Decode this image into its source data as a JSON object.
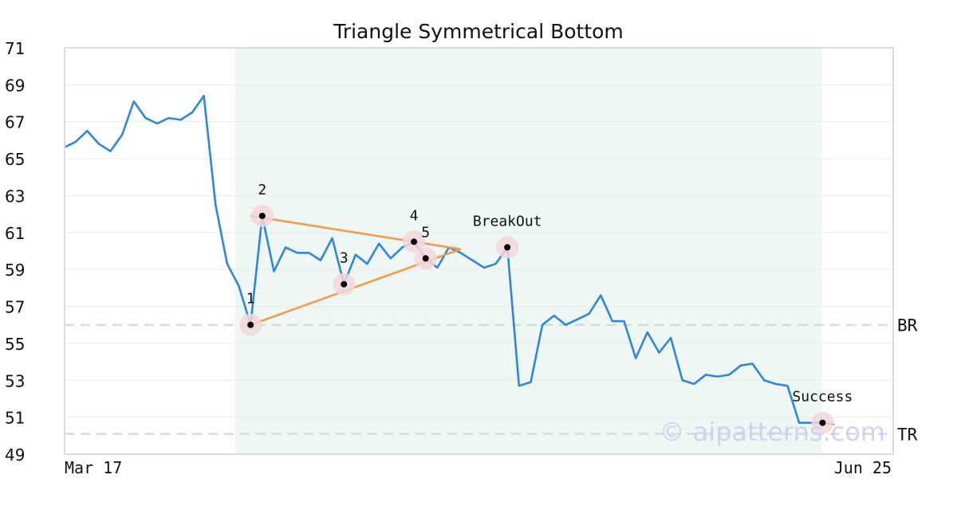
{
  "chart_data": {
    "type": "line",
    "title": "Triangle Symmetrical Bottom",
    "xlabel": "",
    "ylabel": "",
    "x_tick_labels": [
      "Mar 17",
      "Jun 25"
    ],
    "ylim": [
      49,
      71
    ],
    "y_ticks": [
      49,
      51,
      53,
      55,
      57,
      59,
      61,
      63,
      65,
      67,
      69,
      71
    ],
    "grid": "horizontal",
    "series": [
      {
        "values": [
          65.6,
          65.9,
          66.5,
          65.8,
          65.4,
          66.3,
          68.1,
          67.2,
          66.9,
          67.2,
          67.1,
          67.5,
          68.4,
          62.5,
          59.3,
          58.1,
          56.0,
          61.9,
          58.9,
          60.2,
          59.9,
          59.9,
          59.5,
          60.7,
          58.2,
          59.8,
          59.3,
          60.4,
          59.6,
          60.2,
          60.5,
          59.6,
          59.1,
          60.2,
          59.9,
          59.5,
          59.1,
          59.3,
          60.2,
          52.7,
          52.9,
          56.0,
          56.5,
          56.0,
          56.3,
          56.6,
          57.6,
          56.2,
          56.2,
          54.2,
          55.6,
          54.5,
          55.3,
          53.0,
          52.8,
          53.3,
          53.2,
          53.3,
          53.8,
          53.9,
          53.0,
          52.8,
          52.7,
          50.7,
          50.7,
          50.7,
          50.6
        ]
      }
    ],
    "highlight_range": {
      "start_index": 14,
      "end_index": 65
    },
    "pattern_lines": [
      {
        "from": {
          "x_index": 16,
          "y": 61.9
        },
        "to": {
          "x_index": 34,
          "y": 60.1
        }
      },
      {
        "from": {
          "x_index": 16,
          "y": 56.0
        },
        "to": {
          "x_index": 34,
          "y": 60.1
        }
      }
    ],
    "pattern_points": [
      {
        "label": "1",
        "x_index": 16,
        "y": 56.0
      },
      {
        "label": "2",
        "x_index": 17,
        "y": 61.9
      },
      {
        "label": "3",
        "x_index": 24,
        "y": 58.2
      },
      {
        "label": "4",
        "x_index": 30,
        "y": 60.5
      },
      {
        "label": "5",
        "x_index": 31,
        "y": 59.6
      },
      {
        "label": "BreakOut",
        "x_index": 38,
        "y": 60.2
      },
      {
        "label": "Success",
        "x_index": 65,
        "y": 50.7
      }
    ],
    "reference_lines": [
      {
        "label": "BR",
        "y": 56.0
      },
      {
        "label": "TR",
        "y": 50.1
      }
    ],
    "watermark": "© aipatterns.com",
    "colors": {
      "line": "#2e86de",
      "pattern": "#f39c4a",
      "highlight": "#eef7f4",
      "marker_halo": "#f2d7dc",
      "reference": "#d9d9d9",
      "watermark": "#c9cdf4"
    }
  }
}
